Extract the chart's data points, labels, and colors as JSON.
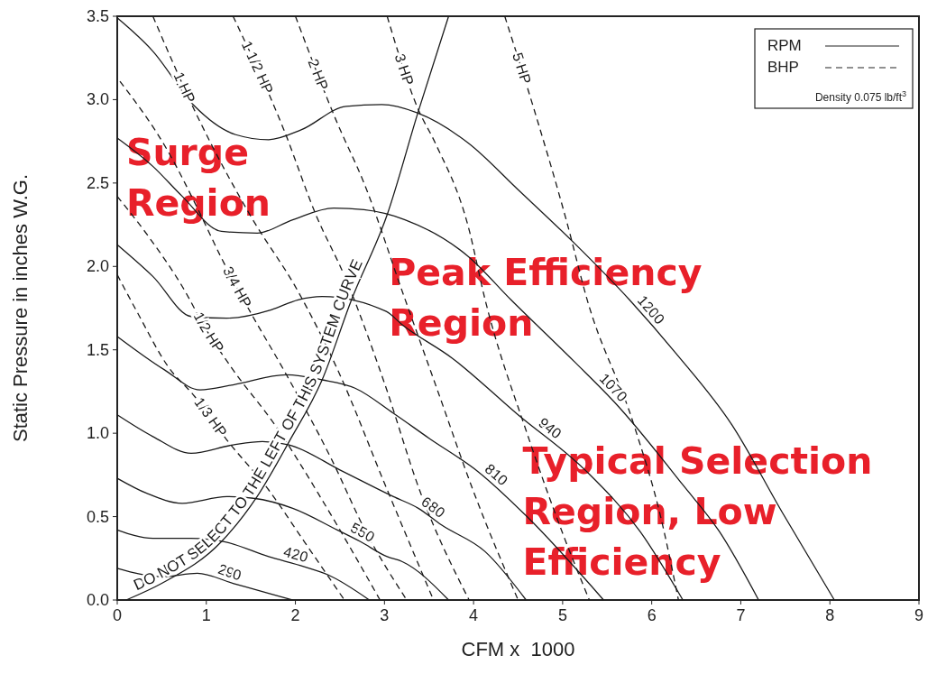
{
  "chart_data": {
    "type": "line",
    "xlabel": "CFM x  1000",
    "ylabel": "Static Pressure in inches W.G.",
    "xlim": [
      0,
      9
    ],
    "xticks": [
      0,
      1,
      2,
      3,
      4,
      5,
      6,
      7,
      8,
      9
    ],
    "ylim": [
      0,
      3.5
    ],
    "yticks": [
      {
        "value": 0,
        "label": "0.0"
      },
      0.5,
      {
        "value": 1,
        "label": "1.0"
      },
      1.5,
      {
        "value": 2,
        "label": "2.0"
      },
      2.5,
      {
        "value": 3,
        "label": "3.0"
      },
      3.5
    ],
    "annotations": [
      "RPM",
      "BHP",
      "Density 0.075 lb/ft$^{3}$",
      "Surge Region",
      "Peak Efficiency Region",
      "Typical Selection Region, Low Efficiency"
    ],
    "series": [
      {
        "name": "290",
        "color": "#1a1a1a",
        "line_style": "solid",
        "x": [
          0,
          0.5,
          0.9,
          1.3,
          1.7,
          1.97
        ],
        "values": [
          0.19,
          0.14,
          0.16,
          0.1,
          0.04,
          0
        ]
      },
      {
        "name": "420",
        "color": "#1a1a1a",
        "line_style": "solid",
        "x": [
          0,
          0.4,
          0.83,
          1.2,
          1.7,
          2.1,
          2.37,
          2.83
        ],
        "values": [
          0.42,
          0.37,
          0.37,
          0.35,
          0.26,
          0.2,
          0.15,
          0
        ]
      },
      {
        "name": "550",
        "color": "#1a1a1a",
        "line_style": "solid",
        "x": [
          0,
          0.33,
          0.73,
          1.23,
          1.53,
          1.97,
          2.47,
          2.73,
          3.03,
          3.2,
          3.72
        ],
        "values": [
          0.73,
          0.64,
          0.58,
          0.62,
          0.61,
          0.55,
          0.42,
          0.35,
          0.26,
          0.23,
          0
        ]
      },
      {
        "name": "680",
        "color": "#1a1a1a",
        "line_style": "solid",
        "x": [
          0,
          0.4,
          0.83,
          1.3,
          1.63,
          1.93,
          2.5,
          3.1,
          3.38,
          3.64,
          4.13,
          4.59
        ],
        "values": [
          1.11,
          0.98,
          0.88,
          0.93,
          0.95,
          0.93,
          0.78,
          0.62,
          0.55,
          0.45,
          0.29,
          0
        ]
      },
      {
        "name": "810",
        "color": "#1a1a1a",
        "line_style": "solid",
        "x": [
          0,
          0.53,
          0.93,
          1.3,
          1.9,
          2.3,
          2.67,
          3.1,
          3.5,
          4.05,
          4.6,
          5.46
        ],
        "values": [
          1.58,
          1.38,
          1.26,
          1.29,
          1.35,
          1.32,
          1.27,
          1.12,
          0.97,
          0.77,
          0.5,
          0
        ]
      },
      {
        "name": "940",
        "color": "#1a1a1a",
        "line_style": "solid",
        "x": [
          0,
          0.4,
          0.83,
          1.23,
          1.73,
          2.03,
          2.3,
          3.02,
          3.2,
          3.76,
          4.5,
          5.27,
          5.87,
          6.35
        ],
        "values": [
          2.13,
          1.94,
          1.7,
          1.69,
          1.74,
          1.8,
          1.82,
          1.73,
          1.65,
          1.45,
          1.11,
          0.77,
          0.41,
          0
        ]
      },
      {
        "name": "1070",
        "color": "#1a1a1a",
        "line_style": "solid",
        "x": [
          0,
          0.4,
          0.73,
          1.17,
          1.57,
          1.97,
          2.43,
          2.77,
          3.23,
          3.94,
          4.42,
          5.13,
          5.61,
          6.35,
          6.76,
          7.2
        ],
        "values": [
          2.77,
          2.6,
          2.42,
          2.21,
          2.2,
          2.28,
          2.35,
          2.34,
          2.28,
          2.06,
          1.8,
          1.43,
          1.17,
          0.69,
          0.41,
          0
        ]
      },
      {
        "name": "1200",
        "color": "#1a1a1a",
        "line_style": "solid",
        "x": [
          0,
          0.4,
          0.87,
          1.33,
          1.7,
          2.07,
          2.57,
          2.97,
          3.37,
          3.94,
          4.5,
          5.13,
          5.75,
          6.27,
          6.9,
          7.46,
          8.05
        ],
        "values": [
          3.49,
          3.29,
          2.96,
          2.79,
          2.76,
          2.82,
          2.96,
          2.97,
          2.92,
          2.74,
          2.46,
          2.14,
          1.8,
          1.48,
          1.05,
          0.53,
          0
        ]
      },
      {
        "name": "1/3 HP",
        "color": "#1a1a1a",
        "line_style": "dashed",
        "x": [
          0,
          0.23,
          0.57,
          0.87,
          1.23,
          1.7,
          2.1,
          2.55
        ],
        "values": [
          1.95,
          1.72,
          1.4,
          1.22,
          0.96,
          0.66,
          0.35,
          0
        ]
      },
      {
        "name": "1/2 HP",
        "color": "#1a1a1a",
        "line_style": "dashed",
        "x": [
          0,
          0.35,
          0.73,
          1.0,
          1.3,
          1.77,
          2.3,
          2.95
        ],
        "values": [
          2.42,
          2.18,
          1.88,
          1.62,
          1.38,
          1.05,
          0.6,
          0
        ]
      },
      {
        "name": "3/4 HP",
        "color": "#1a1a1a",
        "line_style": "dashed",
        "x": [
          0.03,
          0.57,
          0.9,
          1.17,
          1.47,
          1.9,
          2.4,
          2.8,
          3.25
        ],
        "values": [
          3.11,
          2.69,
          2.35,
          2.05,
          1.75,
          1.35,
          0.85,
          0.4,
          0
        ]
      },
      {
        "name": "1 HP",
        "color": "#1a1a1a",
        "line_style": "dashed",
        "x": [
          0.4,
          0.9,
          1.5,
          2.03,
          2.5,
          3.0,
          3.55
        ],
        "values": [
          3.5,
          2.9,
          2.3,
          1.85,
          1.35,
          0.7,
          0
        ]
      },
      {
        "name": "1 1/2 HP",
        "color": "#1a1a1a",
        "line_style": "dashed",
        "x": [
          1.3,
          1.87,
          2.23,
          2.57,
          3.0,
          3.4,
          3.95
        ],
        "values": [
          3.5,
          2.82,
          2.31,
          1.92,
          1.3,
          0.65,
          0
        ]
      },
      {
        "name": "2 HP",
        "color": "#1a1a1a",
        "line_style": "dashed",
        "x": [
          2.0,
          2.47,
          2.77,
          3.2,
          3.6,
          4.0,
          4.5
        ],
        "values": [
          3.5,
          2.86,
          2.5,
          1.85,
          1.25,
          0.65,
          0
        ]
      },
      {
        "name": "3 HP",
        "color": "#1a1a1a",
        "line_style": "dashed",
        "x": [
          3.03,
          3.38,
          3.57,
          3.94,
          4.13,
          4.6,
          5.0,
          5.3
        ],
        "values": [
          3.5,
          2.94,
          2.74,
          2.24,
          1.8,
          1.0,
          0.4,
          0
        ]
      },
      {
        "name": "5 HP",
        "color": "#1a1a1a",
        "line_style": "dashed",
        "x": [
          4.35,
          4.68,
          5.05,
          5.27,
          5.8,
          6.1,
          6.3
        ],
        "values": [
          3.5,
          2.94,
          2.26,
          1.81,
          1.05,
          0.5,
          0
        ]
      },
      {
        "name": "DO NOT SELECT TO THE LEFT OF THIS SYSTEM CURVE",
        "color": "#1a1a1a",
        "line_style": "solid",
        "x": [
          0.1,
          0.5,
          1.17,
          1.57,
          1.93,
          2.3,
          2.63,
          3.03,
          3.38,
          3.72
        ],
        "values": [
          0,
          0.1,
          0.35,
          0.62,
          0.95,
          1.32,
          1.8,
          2.31,
          2.93,
          3.5
        ]
      }
    ]
  }
}
